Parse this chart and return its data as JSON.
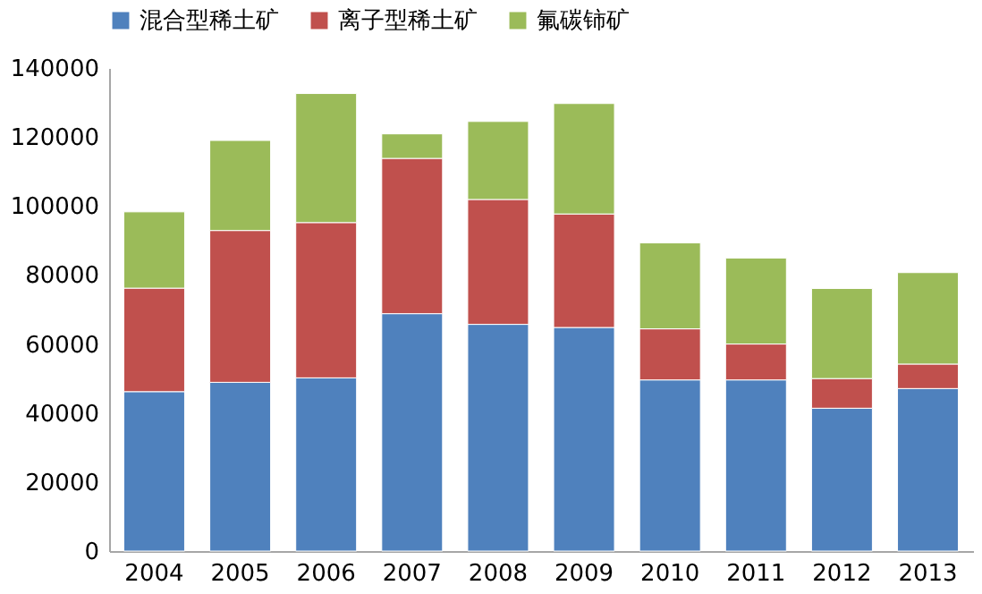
{
  "chart_data": {
    "type": "bar",
    "stacked": true,
    "categories": [
      "2004",
      "2005",
      "2006",
      "2007",
      "2008",
      "2009",
      "2010",
      "2011",
      "2012",
      "2013"
    ],
    "series": [
      {
        "name": "混合型稀土矿",
        "color": "#4f81bd",
        "values": [
          46200,
          48900,
          50200,
          68800,
          65700,
          64800,
          49600,
          49600,
          41400,
          47100
        ]
      },
      {
        "name": "离子型稀土矿",
        "color": "#c0504d",
        "values": [
          30000,
          44000,
          45000,
          45000,
          36200,
          32900,
          14800,
          10400,
          8600,
          7100
        ]
      },
      {
        "name": "氟碳铈矿",
        "color": "#9bbb59",
        "values": [
          22100,
          26100,
          37400,
          7100,
          22600,
          32000,
          24900,
          24900,
          26100,
          26500
        ]
      }
    ],
    "ylim": [
      0,
      140000
    ],
    "yticks": [
      0,
      20000,
      40000,
      60000,
      80000,
      100000,
      120000,
      140000
    ],
    "grid": false,
    "legend": "top"
  }
}
